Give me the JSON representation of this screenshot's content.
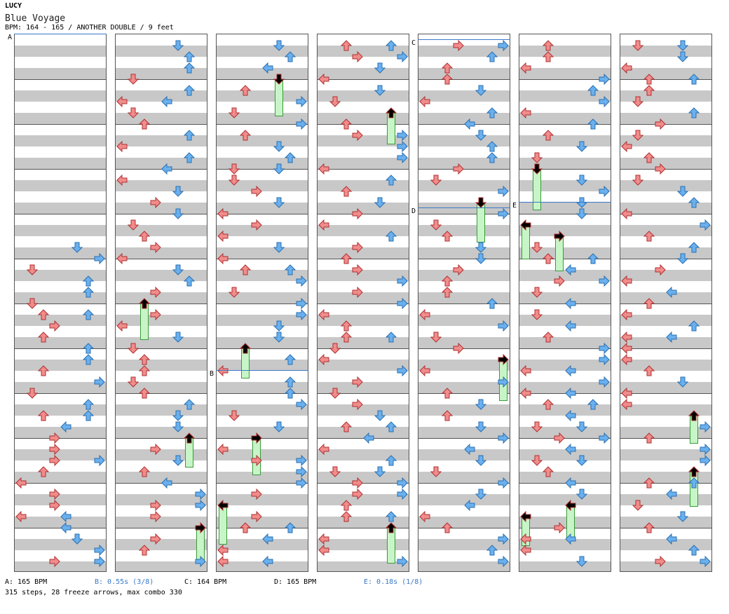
{
  "header": {
    "artist": "LUCY",
    "title": "Blue Voyage",
    "info": "BPM: 164 - 165 / ANOTHER DOUBLE / 9 feet"
  },
  "colors": {
    "red": "#f08c8c",
    "blue": "#6ab0ee",
    "freeze_fill": "#c8f5c8",
    "stripe": "#c8c8c8",
    "change_line": "#3a78c8"
  },
  "changes": [
    {
      "label": "A",
      "kind": "bpm",
      "text": "A: 165 BPM"
    },
    {
      "label": "B",
      "kind": "stop",
      "text": "B: 0.55s (3/8)"
    },
    {
      "label": "C",
      "kind": "bpm",
      "text": "C: 164 BPM"
    },
    {
      "label": "D",
      "kind": "bpm",
      "text": "D: 165 BPM"
    },
    {
      "label": "E",
      "kind": "stop",
      "text": "E: 0.18s (1/8)"
    }
  ],
  "footer": {
    "summary": "315 steps, 28 freeze arrows, max combo 330"
  }
}
